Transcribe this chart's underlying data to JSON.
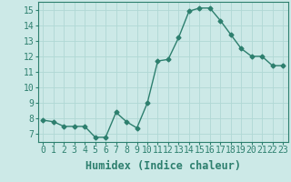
{
  "x": [
    0,
    1,
    2,
    3,
    4,
    5,
    6,
    7,
    8,
    9,
    10,
    11,
    12,
    13,
    14,
    15,
    16,
    17,
    18,
    19,
    20,
    21,
    22,
    23
  ],
  "y": [
    7.9,
    7.8,
    7.5,
    7.5,
    7.5,
    6.8,
    6.8,
    8.4,
    7.8,
    7.4,
    9.0,
    11.7,
    11.8,
    13.2,
    14.9,
    15.1,
    15.1,
    14.3,
    13.4,
    12.5,
    12.0,
    12.0,
    11.4,
    11.4
  ],
  "line_color": "#2d7f6e",
  "bg_color": "#cce9e7",
  "grid_color": "#b0d8d5",
  "xlabel": "Humidex (Indice chaleur)",
  "ylim": [
    6.5,
    15.5
  ],
  "xlim": [
    -0.5,
    23.5
  ],
  "yticks": [
    7,
    8,
    9,
    10,
    11,
    12,
    13,
    14,
    15
  ],
  "xtick_labels": [
    "0",
    "1",
    "2",
    "3",
    "4",
    "5",
    "6",
    "7",
    "8",
    "9",
    "10",
    "11",
    "12",
    "13",
    "14",
    "15",
    "16",
    "17",
    "18",
    "19",
    "20",
    "21",
    "22",
    "23"
  ],
  "marker": "D",
  "marker_size": 2.5,
  "line_width": 1.0,
  "font_color": "#2d7f6e",
  "tick_fontsize": 7,
  "xlabel_fontsize": 8.5
}
